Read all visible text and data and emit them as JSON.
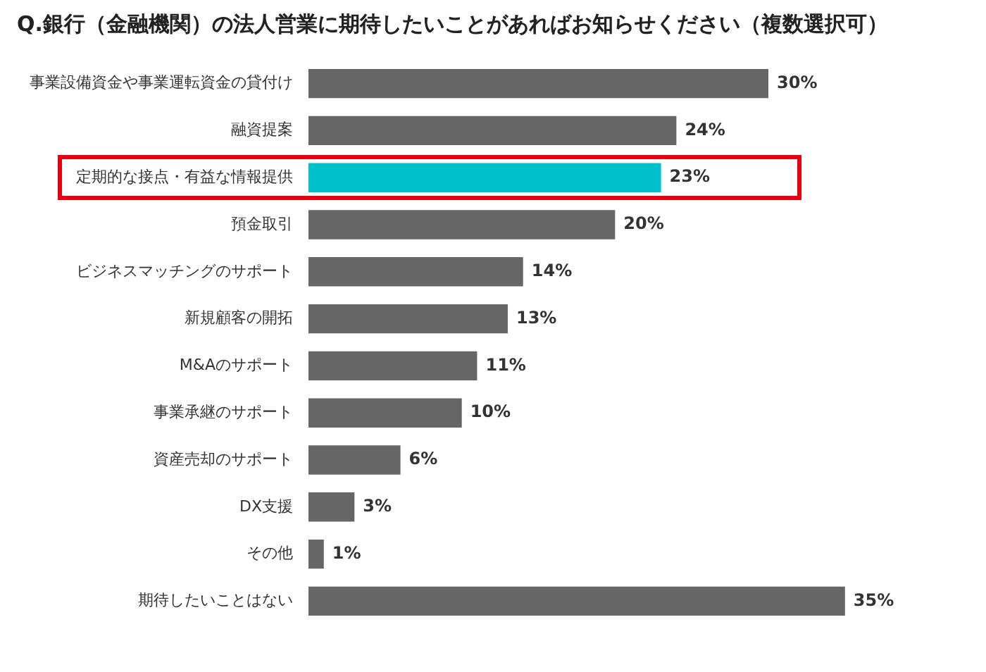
{
  "chart_data": {
    "type": "bar",
    "orientation": "horizontal",
    "title": "Q.銀行（金融機関）の法人営業に期待したいことがあればお知らせください（複数選択可）",
    "categories": [
      "事業設備資金や事業運転資金の貸付け",
      "融資提案",
      "定期的な接点・有益な情報提供",
      "預金取引",
      "ビジネスマッチングのサポート",
      "新規顧客の開拓",
      "M&Aのサポート",
      "事業承継のサポート",
      "資産売却のサポート",
      "DX支援",
      "その他",
      "期待したいことはない"
    ],
    "values": [
      30,
      24,
      23,
      20,
      14,
      13,
      11,
      10,
      6,
      3,
      1,
      35
    ],
    "colors": [
      "#666666",
      "#666666",
      "#00c0cc",
      "#666666",
      "#666666",
      "#666666",
      "#666666",
      "#666666",
      "#666666",
      "#666666",
      "#666666",
      "#666666"
    ],
    "value_labels": [
      "30%",
      "24%",
      "23%",
      "20%",
      "14%",
      "13%",
      "11%",
      "10%",
      "6%",
      "3%",
      "1%",
      "35%"
    ],
    "grid": false,
    "legend": false,
    "tick_labels": "y"
  }
}
